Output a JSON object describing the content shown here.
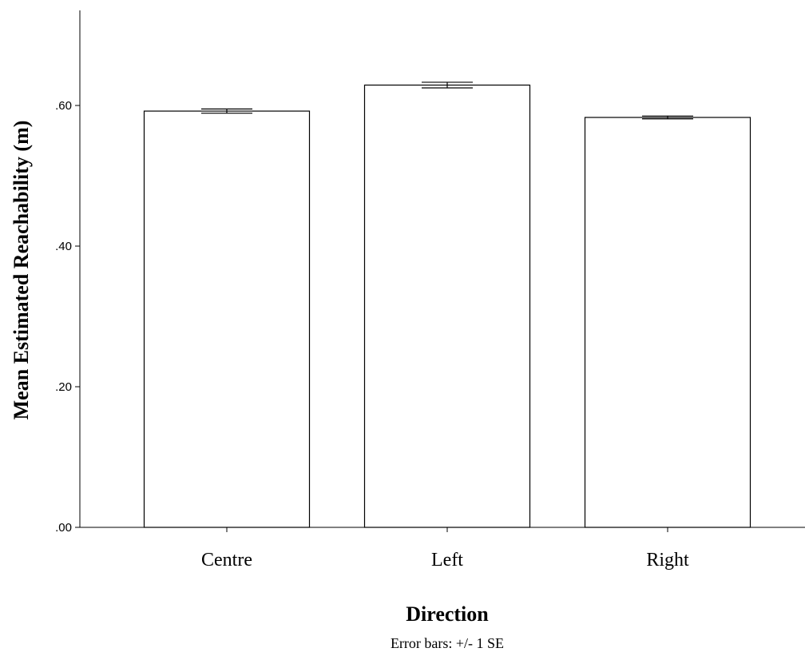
{
  "chart_data": {
    "type": "bar",
    "categories": [
      "Centre",
      "Left",
      "Right"
    ],
    "values": [
      0.592,
      0.629,
      0.583
    ],
    "errors": [
      0.003,
      0.004,
      0.002
    ],
    "xlabel": "Direction",
    "ylabel": "Mean Estimated Reachability (m)",
    "ylim": [
      0,
      0.74
    ],
    "yticks": [
      0.0,
      0.2,
      0.4,
      0.6
    ],
    "ytick_labels": [
      ".00",
      ".20",
      ".40",
      ".60"
    ],
    "note": "Error bars: +/- 1 SE",
    "grid": false,
    "legend": "none",
    "colors": {
      "bar_fill": "#ffffff",
      "bar_stroke": "#000000",
      "axis": "#000000"
    }
  }
}
